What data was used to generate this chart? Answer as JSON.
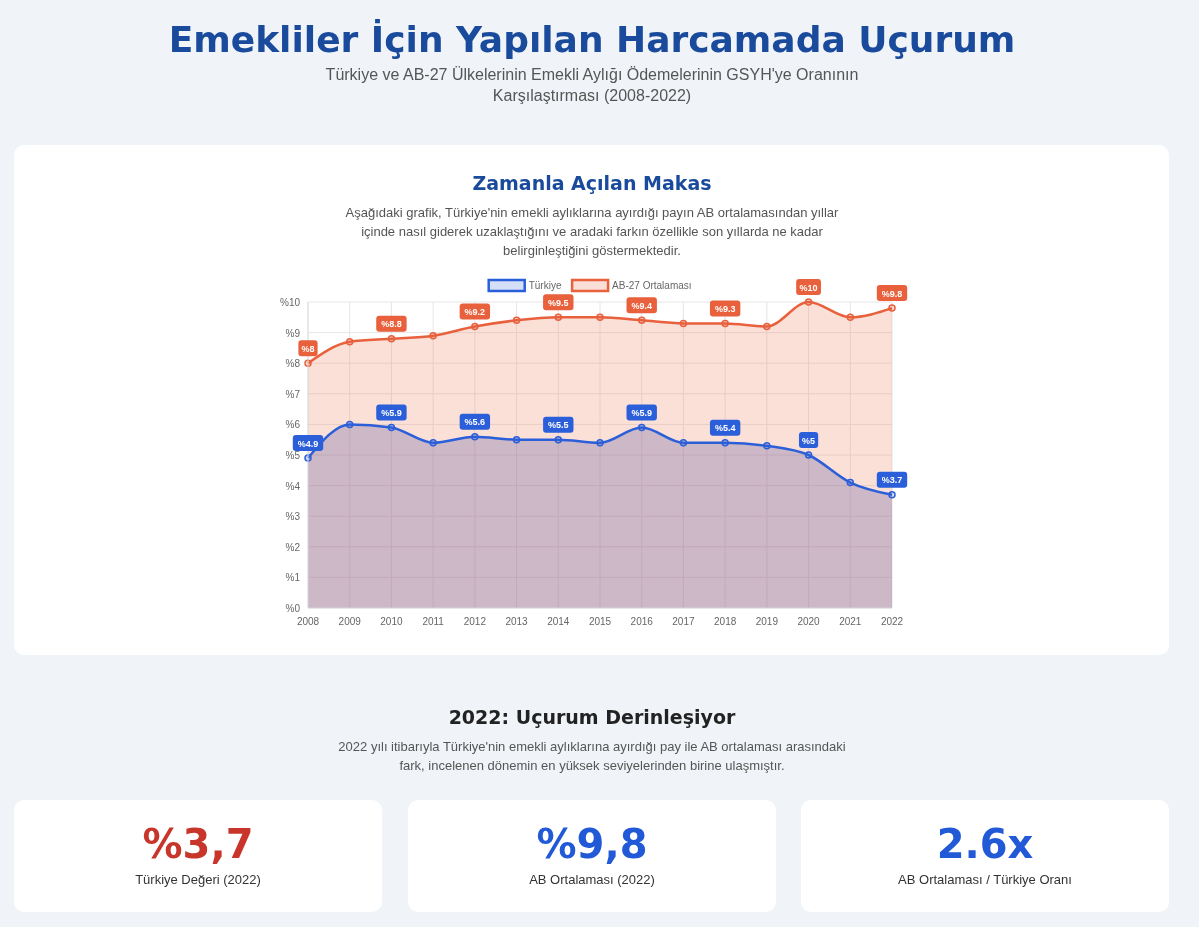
{
  "chart_data": [
    {
      "type": "other",
      "title": "Emekliler İçin Yapılan Harcamada Uçurum",
      "subtitle": "Türkiye ve AB-27 Ülkelerinin Emekli Aylığı Ödemelerinin GSYH'ye Oranının Karşılaştırması (2008-2022)"
    },
    {
      "type": "area",
      "title": "Zamanla Açılan Makas",
      "subtitle": "Aşağıdaki grafik, Türkiye'nin emekli aylıklarına ayırdığı payın AB ortalamasından yıllar içinde nasıl giderek uzaklaştığını ve aradaki farkın özellikle son yıllarda ne kadar belirginleştiğini göstermektedir.",
      "categories": [
        "2008",
        "2009",
        "2010",
        "2011",
        "2012",
        "2013",
        "2014",
        "2015",
        "2016",
        "2017",
        "2018",
        "2019",
        "2020",
        "2021",
        "2022"
      ],
      "series": [
        {
          "name": "Türkiye",
          "color": "#2b5fd9",
          "values": [
            4.9,
            6.0,
            5.9,
            5.4,
            5.6,
            5.5,
            5.5,
            5.4,
            5.9,
            5.4,
            5.4,
            5.3,
            5.0,
            4.1,
            3.7
          ],
          "value_labels": [
            "%4.9",
            null,
            "%5.9",
            null,
            "%5.6",
            null,
            "%5.5",
            null,
            "%5.9",
            null,
            "%5.4",
            null,
            "%5",
            null,
            "%3.7"
          ]
        },
        {
          "name": "AB-27 Ortalaması",
          "color": "#e8603c",
          "values": [
            8.0,
            8.7,
            8.8,
            8.9,
            9.2,
            9.4,
            9.5,
            9.5,
            9.4,
            9.3,
            9.3,
            9.2,
            10.0,
            9.5,
            9.8
          ],
          "value_labels": [
            "%8",
            null,
            "%8.8",
            null,
            "%9.2",
            null,
            "%9.5",
            null,
            "%9.4",
            null,
            "%9.3",
            null,
            "%10",
            null,
            "%9.8"
          ]
        }
      ],
      "ylim": [
        0,
        10
      ],
      "yticks": [
        {
          "value": 0,
          "label": "%0"
        },
        {
          "value": 1,
          "label": "%1"
        },
        {
          "value": 2,
          "label": "%2"
        },
        {
          "value": 3,
          "label": "%3"
        },
        {
          "value": 4,
          "label": "%4"
        },
        {
          "value": 5,
          "label": "%5"
        },
        {
          "value": 6,
          "label": "%6"
        },
        {
          "value": 7,
          "label": "%7"
        },
        {
          "value": 8,
          "label": "%8"
        },
        {
          "value": 9,
          "label": "%9"
        },
        {
          "value": 10,
          "label": "%10"
        }
      ],
      "grid": true,
      "legend": "top",
      "marker": "circle",
      "line_style": "solid"
    },
    {
      "type": "other",
      "title": "2022: Uçurum Derinleşiyor",
      "subtitle": "2022 yılı itibarıyla Türkiye'nin emekli aylıklarına ayırdığı pay ile AB ortalaması arasındaki fark, incelenen dönemin en yüksek seviyelerinden birine ulaşmıştır.",
      "annotations": [
        "%3,7",
        "Türkiye Değeri (2022)",
        "%9,8",
        "AB Ortalaması (2022)",
        "2.6x",
        "AB Ortalaması / Türkiye Oranı"
      ],
      "colors": [
        "#c8352b",
        "#2159d6",
        "#2159d6"
      ]
    }
  ]
}
